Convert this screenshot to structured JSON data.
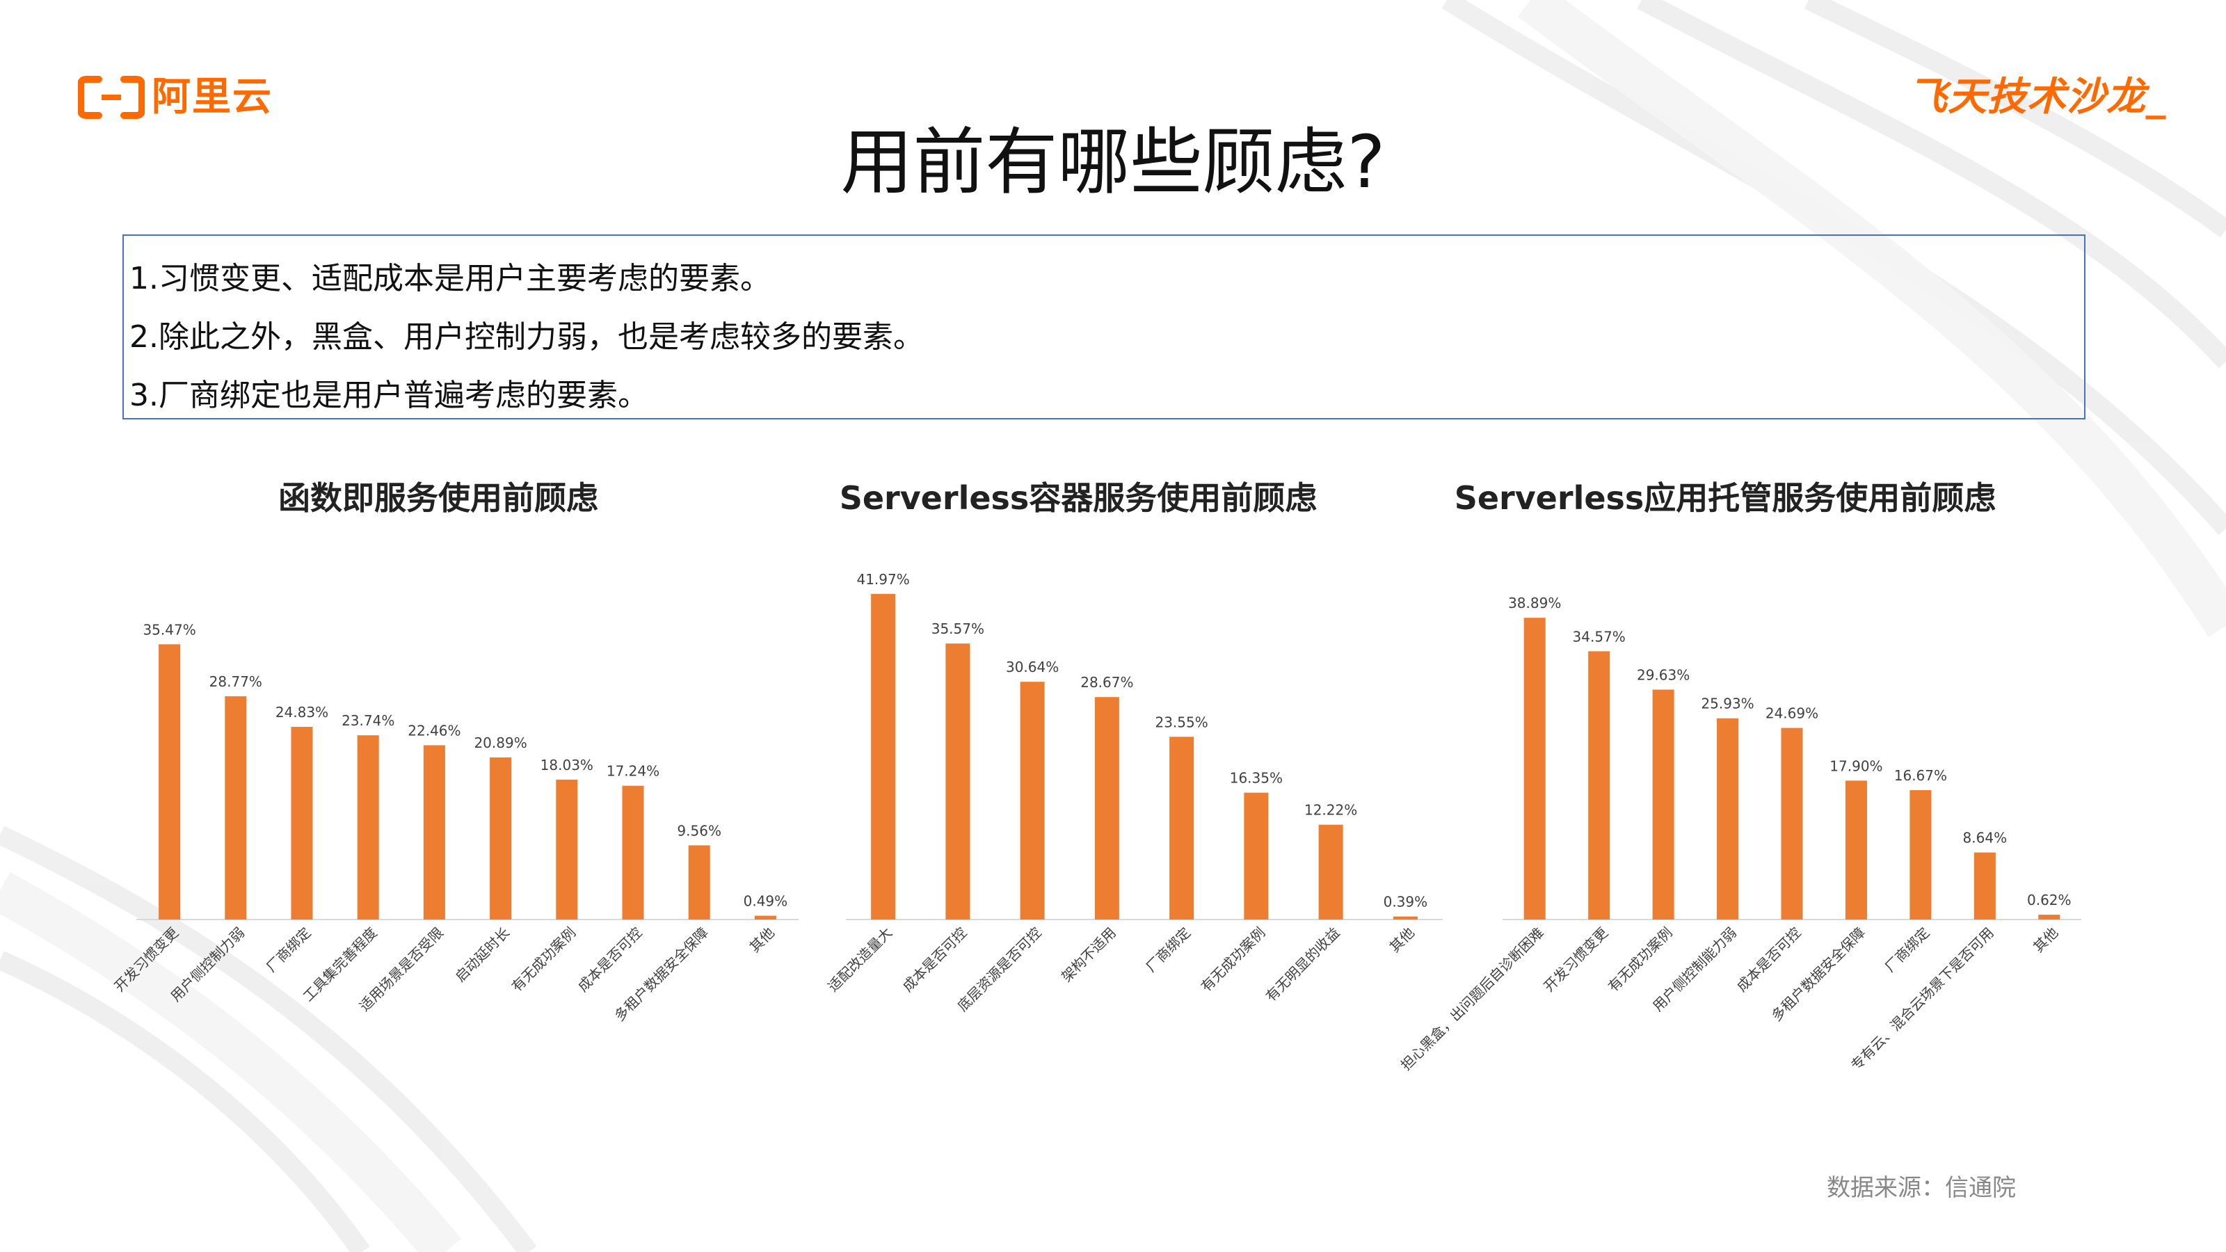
{
  "header": {
    "logo_left_text": "阿里云",
    "logo_right_text": "飞天技术沙龙_",
    "page_title": "用前有哪些顾虑?"
  },
  "summary": {
    "lines": [
      "1.习惯变更、适配成本是用户主要考虑的要素。",
      "2.除此之外，黑盒、用户控制力弱，也是考虑较多的要素。",
      "3.厂商绑定也是用户普遍考虑的要素。"
    ]
  },
  "colors": {
    "bar": "#ed7d31",
    "accent": "#ff6a00",
    "frame": "#4472c4"
  },
  "chart_data": [
    {
      "type": "bar",
      "title": "函数即服务使用前顾虑",
      "categories": [
        "开发习惯变更",
        "用户侧控制力弱",
        "厂商绑定",
        "工具集完善程度",
        "适用场景是否受限",
        "启动延时长",
        "有无成功案例",
        "成本是否可控",
        "多租户数据安全保障",
        "其他"
      ],
      "values": [
        35.47,
        28.77,
        24.83,
        23.74,
        22.46,
        20.89,
        18.03,
        17.24,
        9.56,
        0.49
      ],
      "value_labels": [
        "35.47%",
        "28.77%",
        "24.83%",
        "23.74%",
        "22.46%",
        "20.89%",
        "18.03%",
        "17.24%",
        "9.56%",
        "0.49%"
      ],
      "ylim": [
        0,
        45
      ]
    },
    {
      "type": "bar",
      "title": "Serverless容器服务使用前顾虑",
      "categories": [
        "适配改造量大",
        "成本是否可控",
        "底层资源是否可控",
        "架构不适用",
        "厂商绑定",
        "有无成功案例",
        "有无明显的收益",
        "其他"
      ],
      "values": [
        41.97,
        35.57,
        30.64,
        28.67,
        23.55,
        16.35,
        12.22,
        0.39
      ],
      "value_labels": [
        "41.97%",
        "35.57%",
        "30.64%",
        "28.67%",
        "23.55%",
        "16.35%",
        "12.22%",
        "0.39%"
      ],
      "ylim": [
        0,
        45
      ]
    },
    {
      "type": "bar",
      "title": "Serverless应用托管服务使用前顾虑",
      "categories": [
        "担心黑盒，出问题后自诊断困难",
        "开发习惯变更",
        "有无成功案例",
        "用户侧控制能力弱",
        "成本是否可控",
        "多租户数据安全保障",
        "厂商绑定",
        "专有云、混合云场景下是否可用",
        "其他"
      ],
      "values": [
        38.89,
        34.57,
        29.63,
        25.93,
        24.69,
        17.9,
        16.67,
        8.64,
        0.62
      ],
      "value_labels": [
        "38.89%",
        "34.57%",
        "29.63%",
        "25.93%",
        "24.69%",
        "17.90%",
        "16.67%",
        "8.64%",
        "0.62%"
      ],
      "ylim": [
        0,
        45
      ]
    }
  ],
  "footer": {
    "source_note": "数据来源：信通院"
  }
}
